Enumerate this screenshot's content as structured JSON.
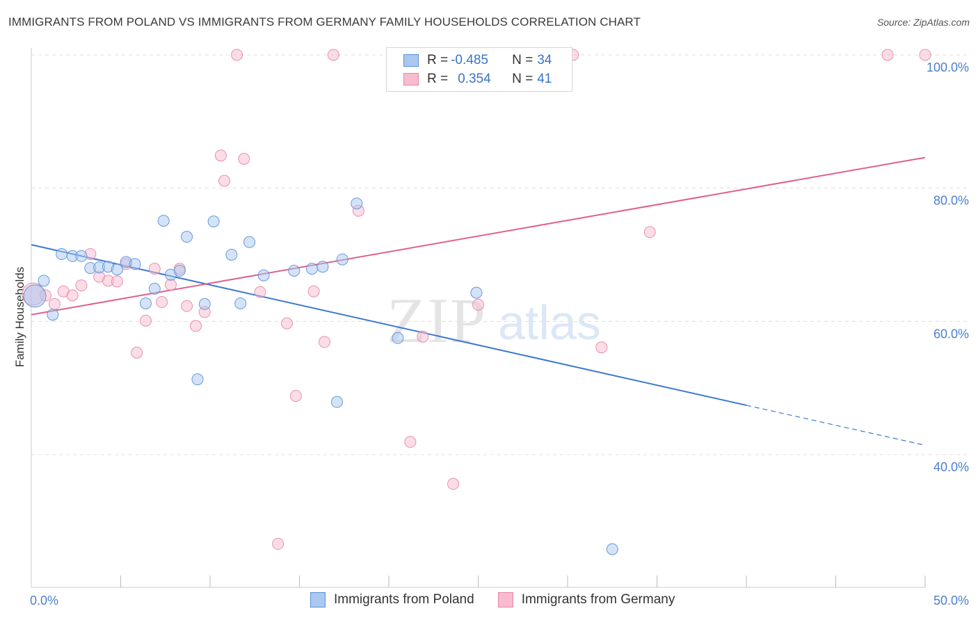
{
  "header": {
    "title": "IMMIGRANTS FROM POLAND VS IMMIGRANTS FROM GERMANY FAMILY HOUSEHOLDS CORRELATION CHART",
    "source": "Source: ZipAtlas.com"
  },
  "watermark": {
    "zip": "ZIP",
    "atlas": "atlas"
  },
  "legend": {
    "poland": {
      "r_label": "R = ",
      "r_value": "-0.485",
      "n_label": "N = ",
      "n_value": "34"
    },
    "germany": {
      "r_label": "R = ",
      "r_value": "0.354",
      "n_label": "N = ",
      "n_value": "41"
    }
  },
  "colors": {
    "poland_fill": "#aac8f0",
    "poland_stroke": "#5b8fd6",
    "poland_line": "#3a78d0",
    "germany_fill": "#f7bcd0",
    "germany_stroke": "#e585a6",
    "germany_line": "#e0608b",
    "tick_text": "#4a7fd0",
    "grid": "#dcdcdc"
  },
  "chart_data": {
    "type": "scatter",
    "title": "IMMIGRANTS FROM POLAND VS IMMIGRANTS FROM GERMANY FAMILY HOUSEHOLDS CORRELATION CHART",
    "xlabel": "",
    "ylabel": "Family Households",
    "xlim": [
      0,
      50
    ],
    "ylim": [
      20,
      102
    ],
    "x_tick_labels": [
      {
        "value": 0,
        "label": "0.0%"
      },
      {
        "value": 50,
        "label": "50.0%"
      }
    ],
    "x_minor_ticks": [
      5,
      10,
      15,
      20,
      25,
      30,
      35,
      40,
      45,
      50
    ],
    "y_ticks": [
      {
        "value": 100,
        "label": "100.0%"
      },
      {
        "value": 80,
        "label": "80.0%"
      },
      {
        "value": 60,
        "label": "60.0%"
      },
      {
        "value": 40,
        "label": "40.0%"
      }
    ],
    "grid": true,
    "series": [
      {
        "name": "Immigrants from Poland",
        "points": [
          [
            0.2,
            63.8
          ],
          [
            0.7,
            66.1
          ],
          [
            1.2,
            61.0
          ],
          [
            1.7,
            70.1
          ],
          [
            2.3,
            69.8
          ],
          [
            2.8,
            69.8
          ],
          [
            3.3,
            68.0
          ],
          [
            3.8,
            68.1
          ],
          [
            4.3,
            68.2
          ],
          [
            4.8,
            67.8
          ],
          [
            5.3,
            68.9
          ],
          [
            5.8,
            68.6
          ],
          [
            6.4,
            62.7
          ],
          [
            6.9,
            64.9
          ],
          [
            7.4,
            75.1
          ],
          [
            7.8,
            67.0
          ],
          [
            8.3,
            67.6
          ],
          [
            8.7,
            72.7
          ],
          [
            9.3,
            51.3
          ],
          [
            9.7,
            62.6
          ],
          [
            10.2,
            75.0
          ],
          [
            11.2,
            70.0
          ],
          [
            11.7,
            62.7
          ],
          [
            12.2,
            71.9
          ],
          [
            13.0,
            66.9
          ],
          [
            14.7,
            67.6
          ],
          [
            15.7,
            67.9
          ],
          [
            16.3,
            68.2
          ],
          [
            17.1,
            47.9
          ],
          [
            17.4,
            69.3
          ],
          [
            18.2,
            77.7
          ],
          [
            20.5,
            57.5
          ],
          [
            24.9,
            64.3
          ],
          [
            32.5,
            25.8
          ]
        ],
        "trend": {
          "x0": 0,
          "y0": 71.5,
          "x1": 40,
          "y1": 47.4,
          "dashed_to_x": 50,
          "dashed_to_y": 41.4
        }
      },
      {
        "name": "Immigrants from Germany",
        "points": [
          [
            0.1,
            64.1
          ],
          [
            0.8,
            63.9
          ],
          [
            1.3,
            62.6
          ],
          [
            1.8,
            64.5
          ],
          [
            2.3,
            63.9
          ],
          [
            2.8,
            65.4
          ],
          [
            3.3,
            70.1
          ],
          [
            3.8,
            66.7
          ],
          [
            4.3,
            66.1
          ],
          [
            4.8,
            66.0
          ],
          [
            5.3,
            68.6
          ],
          [
            5.9,
            55.3
          ],
          [
            6.4,
            60.1
          ],
          [
            6.9,
            67.9
          ],
          [
            7.3,
            62.9
          ],
          [
            7.8,
            65.5
          ],
          [
            8.3,
            67.9
          ],
          [
            8.7,
            62.3
          ],
          [
            9.2,
            59.3
          ],
          [
            9.7,
            61.4
          ],
          [
            10.6,
            84.9
          ],
          [
            10.8,
            81.1
          ],
          [
            11.5,
            100
          ],
          [
            11.9,
            84.4
          ],
          [
            12.8,
            64.4
          ],
          [
            13.8,
            26.6
          ],
          [
            14.3,
            59.7
          ],
          [
            14.8,
            48.8
          ],
          [
            15.8,
            64.5
          ],
          [
            16.4,
            56.9
          ],
          [
            16.9,
            100
          ],
          [
            18.3,
            76.6
          ],
          [
            21.2,
            41.9
          ],
          [
            21.9,
            57.7
          ],
          [
            23.6,
            35.6
          ],
          [
            25.0,
            62.5
          ],
          [
            30.3,
            100
          ],
          [
            31.9,
            56.1
          ],
          [
            34.6,
            73.4
          ],
          [
            47.9,
            100
          ],
          [
            50.0,
            100
          ]
        ],
        "trend": {
          "x0": 0,
          "y0": 61.0,
          "x1": 50,
          "y1": 84.6
        }
      }
    ]
  },
  "bottom_legend": [
    {
      "label": "Immigrants from Poland"
    },
    {
      "label": "Immigrants from Germany"
    }
  ]
}
